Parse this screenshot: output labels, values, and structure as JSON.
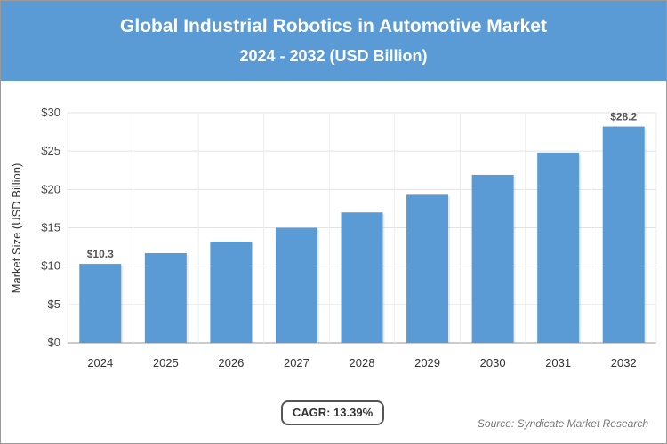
{
  "header": {
    "title": "Global Industrial Robotics in Automotive Market",
    "subtitle": "2024 - 2032 (USD Billion)"
  },
  "footer": {
    "cagr": "CAGR: 13.39%",
    "source": "Source: Syndicate Market Research"
  },
  "chart_data": {
    "type": "bar",
    "title": "Global Industrial Robotics in Automotive Market",
    "subtitle": "2024 - 2032 (USD Billion)",
    "xlabel": "",
    "ylabel": "Market Size (USD Billion)",
    "categories": [
      "2024",
      "2025",
      "2026",
      "2027",
      "2028",
      "2029",
      "2030",
      "2031",
      "2032"
    ],
    "values": [
      10.3,
      11.7,
      13.2,
      15.0,
      17.0,
      19.3,
      21.9,
      24.8,
      28.2
    ],
    "data_labels": {
      "0": "$10.3",
      "8": "$28.2"
    },
    "ylim": [
      0,
      30
    ],
    "yticks": [
      "$0",
      "$5",
      "$10",
      "$15",
      "$20",
      "$25",
      "$30"
    ],
    "grid": true,
    "color": "#5b9bd5"
  }
}
